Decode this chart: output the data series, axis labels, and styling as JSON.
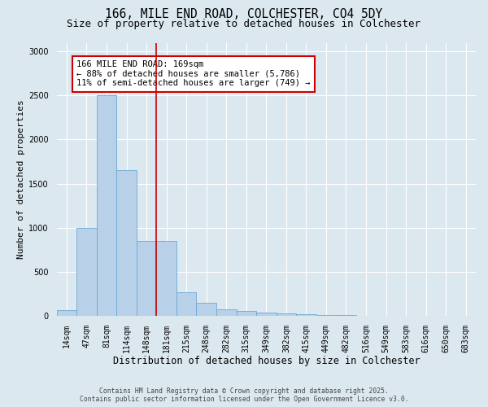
{
  "title_line1": "166, MILE END ROAD, COLCHESTER, CO4 5DY",
  "title_line2": "Size of property relative to detached houses in Colchester",
  "xlabel": "Distribution of detached houses by size in Colchester",
  "ylabel": "Number of detached properties",
  "bar_color": "#b8d0e8",
  "bar_edge_color": "#6aaad4",
  "background_color": "#dce8f0",
  "grid_color": "#ffffff",
  "categories": [
    "14sqm",
    "47sqm",
    "81sqm",
    "114sqm",
    "148sqm",
    "181sqm",
    "215sqm",
    "248sqm",
    "282sqm",
    "315sqm",
    "349sqm",
    "382sqm",
    "415sqm",
    "449sqm",
    "482sqm",
    "516sqm",
    "549sqm",
    "583sqm",
    "616sqm",
    "650sqm",
    "683sqm"
  ],
  "values": [
    60,
    1000,
    2500,
    1650,
    850,
    850,
    270,
    150,
    75,
    50,
    40,
    30,
    20,
    10,
    5,
    3,
    2,
    1,
    1,
    0,
    0
  ],
  "vline_color": "#cc0000",
  "vline_pos": 4.5,
  "annotation_text": "166 MILE END ROAD: 169sqm\n← 88% of detached houses are smaller (5,786)\n11% of semi-detached houses are larger (749) →",
  "annotation_box_color": "#ffffff",
  "annotation_edge_color": "#cc0000",
  "ylim": [
    0,
    3100
  ],
  "yticks": [
    0,
    500,
    1000,
    1500,
    2000,
    2500,
    3000
  ],
  "footer_line1": "Contains HM Land Registry data © Crown copyright and database right 2025.",
  "footer_line2": "Contains public sector information licensed under the Open Government Licence v3.0.",
  "title_fontsize": 10.5,
  "subtitle_fontsize": 9,
  "tick_fontsize": 7,
  "ylabel_fontsize": 8,
  "xlabel_fontsize": 8.5,
  "annotation_fontsize": 7.5
}
